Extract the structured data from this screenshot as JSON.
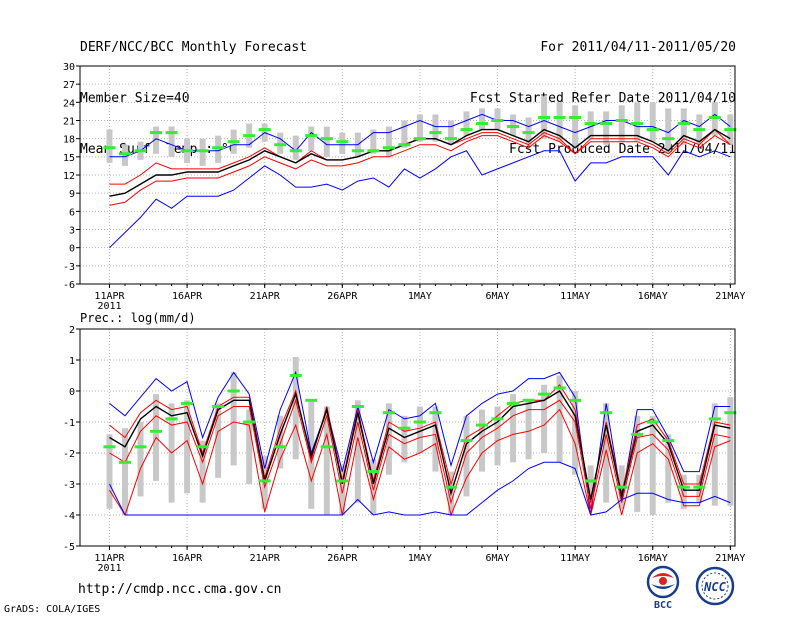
{
  "header": {
    "title": "DERF/NCC/BCC Monthly Forecast",
    "member_size": "Member Size=40",
    "variable": "Mean Surf. Temp.: °C",
    "period": "For 2011/04/11-2011/05/20",
    "fcst_started": "Fcst Started Refer Date 2011/04/10",
    "fcst_produced": "Fcst Produced Date 2011/04/11"
  },
  "footer": {
    "url": "http://cmdp.ncc.cma.gov.cn",
    "grads": "GrADS: COLA/IGES",
    "logo_left": "BCC",
    "logo_right": "NCC"
  },
  "colors": {
    "envelope": "#0000ff",
    "spread": "#ff0000",
    "mean": "#000000",
    "box": "#c8c8c8",
    "marker": "#33ee33",
    "grid": "#b4b4b4"
  },
  "chart_data": [
    {
      "type": "line",
      "title": "Mean Surf. Temp.: °C",
      "xlabel": "",
      "ylabel": "°C",
      "ylim": [
        -6,
        30
      ],
      "yticks": [
        "-6",
        "-3",
        "0",
        "3",
        "6",
        "9",
        "12",
        "15",
        "18",
        "21",
        "24",
        "27",
        "30"
      ],
      "xtick_labels": [
        "11APR",
        "16APR",
        "21APR",
        "26APR",
        "1MAY",
        "6MAY",
        "11MAY",
        "16MAY",
        "21MAY"
      ],
      "year_label": "2011",
      "x_start_day": 1,
      "x_end_day": 41,
      "series": [
        {
          "name": "max",
          "values": [
            15,
            15,
            16,
            18,
            17,
            16,
            16,
            16,
            17,
            17,
            19,
            18,
            16,
            19,
            17,
            17,
            17,
            19,
            19,
            20,
            21,
            20,
            20,
            21,
            22,
            21,
            21,
            20,
            21,
            20,
            19,
            20,
            21,
            21,
            20,
            20,
            19,
            21,
            20,
            22,
            20
          ]
        },
        {
          "name": "upper",
          "values": [
            10.5,
            10.5,
            12,
            14,
            13,
            13,
            13,
            13,
            14,
            15,
            16.5,
            15,
            14,
            16,
            14.5,
            14.5,
            15,
            16,
            16,
            17,
            18,
            18,
            17,
            18,
            19,
            19,
            18,
            17,
            19,
            18,
            15.5,
            18,
            18,
            18,
            18,
            17,
            15.5,
            18,
            17,
            19.5,
            17
          ]
        },
        {
          "name": "mean",
          "values": [
            8.5,
            9,
            10.5,
            12,
            12,
            12.5,
            12.5,
            12.5,
            13.5,
            14.5,
            16,
            15,
            14,
            15.5,
            14.5,
            14.5,
            15,
            16,
            16,
            17,
            18,
            18,
            17,
            18.5,
            19.5,
            19.5,
            18.5,
            17.5,
            19.5,
            18.5,
            16.5,
            18.5,
            18.5,
            18.5,
            18.5,
            17.5,
            16,
            18.5,
            17.5,
            19.5,
            18
          ]
        },
        {
          "name": "lower",
          "values": [
            7,
            7.5,
            9.5,
            11,
            11,
            11.5,
            11.5,
            11.5,
            12.5,
            13.5,
            15,
            14,
            13,
            14.5,
            13.5,
            13.5,
            14,
            15,
            15,
            16,
            17,
            17,
            16,
            17.5,
            18.5,
            18.5,
            17.5,
            16.5,
            18.5,
            17.5,
            15.5,
            17.5,
            17.5,
            17.5,
            17.5,
            16.5,
            15,
            17.5,
            16.5,
            18.5,
            17
          ]
        },
        {
          "name": "min",
          "values": [
            0,
            2.5,
            5,
            8,
            6.5,
            8.5,
            8.5,
            8.5,
            9.5,
            11.5,
            13.5,
            12,
            10,
            10,
            10.5,
            9.5,
            11,
            11.5,
            10,
            13,
            11.5,
            13,
            15,
            16,
            12,
            13,
            14,
            15,
            16,
            16,
            11,
            14,
            14,
            15,
            15,
            15,
            12,
            16,
            15,
            16,
            15
          ]
        },
        {
          "name": "ens_mean_marker",
          "values": [
            16.5,
            15.5,
            16,
            19,
            19,
            16,
            16,
            16.5,
            17.5,
            18.5,
            19.5,
            17,
            16,
            18.5,
            18,
            17.5,
            16,
            16,
            16.5,
            17,
            18,
            19,
            18,
            19.5,
            20.5,
            21,
            20,
            19,
            21.5,
            21.5,
            21.5,
            20.5,
            20.5,
            21,
            20.5,
            19.5,
            18,
            20.5,
            19.5,
            21.5,
            19.5
          ]
        },
        {
          "name": "box_top",
          "values": [
            19.5,
            17,
            17.5,
            20,
            20,
            18,
            18,
            18.5,
            19.5,
            20.5,
            20.5,
            19,
            18.5,
            20,
            20,
            19,
            19,
            19.5,
            20,
            21,
            22,
            22,
            21,
            22.5,
            23,
            23,
            22,
            21.5,
            25,
            24,
            23.5,
            22.5,
            22.5,
            23.5,
            24,
            24,
            23,
            23,
            22,
            24,
            22
          ]
        },
        {
          "name": "box_bottom",
          "values": [
            14,
            13.5,
            14.5,
            15.5,
            15,
            14,
            13.5,
            14,
            15.5,
            16.5,
            17.5,
            15.5,
            14.5,
            16,
            15,
            15.5,
            15,
            15.5,
            15,
            16.5,
            17.5,
            17.5,
            17,
            18.5,
            19.5,
            19.5,
            18.5,
            17,
            18,
            17.5,
            16.5,
            18,
            17,
            17.5,
            17.5,
            17.5,
            15.5,
            17,
            17,
            18.5,
            17
          ]
        }
      ]
    },
    {
      "type": "line",
      "title": "Prec.: log(mm/d)",
      "xlabel": "",
      "ylabel": "log(mm/d)",
      "ylim": [
        -5,
        2
      ],
      "yticks": [
        "-5",
        "-4",
        "-3",
        "-2",
        "-1",
        "0",
        "1",
        "2"
      ],
      "xtick_labels": [
        "11APR",
        "16APR",
        "21APR",
        "26APR",
        "1MAY",
        "6MAY",
        "11MAY",
        "16MAY",
        "21MAY"
      ],
      "year_label": "2011",
      "x_start_day": 1,
      "x_end_day": 41,
      "series": [
        {
          "name": "max",
          "values": [
            -0.4,
            -0.8,
            -0.2,
            0.4,
            0.0,
            0.3,
            -1.5,
            -0.2,
            0.6,
            -0.1,
            -2.5,
            -0.6,
            0.6,
            -2.0,
            -0.6,
            -2.6,
            -0.5,
            -2.3,
            -0.6,
            -0.9,
            -0.8,
            -0.4,
            -2.4,
            -0.8,
            -0.4,
            -0.1,
            0.0,
            0.4,
            0.4,
            0.6,
            -0.2,
            -4.0,
            -0.4,
            -3.5,
            -0.6,
            -0.6,
            -1.5,
            -2.6,
            -2.6,
            -0.5,
            -0.5
          ]
        },
        {
          "name": "upper",
          "values": [
            -1.1,
            -1.5,
            -0.7,
            -0.3,
            -0.6,
            -0.5,
            -2.0,
            -0.5,
            -0.2,
            -0.2,
            -2.8,
            -1.2,
            0.0,
            -2.2,
            -0.5,
            -2.9,
            -0.6,
            -2.9,
            -1.0,
            -1.3,
            -1.2,
            -1.0,
            -3.0,
            -1.5,
            -1.2,
            -0.8,
            -0.4,
            -0.3,
            -0.3,
            0.2,
            -0.6,
            -3.6,
            -1.0,
            -3.3,
            -1.1,
            -0.9,
            -1.6,
            -3.0,
            -3.0,
            -1.0,
            -1.1
          ]
        },
        {
          "name": "mean",
          "values": [
            -1.5,
            -1.8,
            -0.9,
            -0.5,
            -0.8,
            -0.7,
            -2.1,
            -0.6,
            -0.3,
            -0.3,
            -2.9,
            -1.4,
            -0.1,
            -2.1,
            -0.6,
            -3.0,
            -0.7,
            -3.0,
            -1.2,
            -1.5,
            -1.3,
            -1.1,
            -3.3,
            -1.7,
            -1.3,
            -1.0,
            -0.5,
            -0.4,
            -0.3,
            0.0,
            -0.8,
            -3.5,
            -1.1,
            -3.4,
            -1.3,
            -1.1,
            -1.7,
            -3.2,
            -3.2,
            -1.1,
            -1.2
          ]
        },
        {
          "name": "lower",
          "values": [
            -2.0,
            -2.3,
            -1.3,
            -0.8,
            -1.1,
            -1.0,
            -2.3,
            -0.8,
            -0.5,
            -0.5,
            -3.1,
            -1.7,
            -0.3,
            -2.3,
            -0.8,
            -3.3,
            -1.0,
            -3.2,
            -1.4,
            -1.7,
            -1.5,
            -1.4,
            -3.6,
            -2.0,
            -1.5,
            -1.2,
            -0.8,
            -0.6,
            -0.6,
            -0.3,
            -1.0,
            -3.8,
            -1.4,
            -3.6,
            -1.5,
            -1.4,
            -1.9,
            -3.4,
            -3.4,
            -1.4,
            -1.5
          ]
        },
        {
          "name": "red_low",
          "values": [
            -3.2,
            -4.0,
            -2.5,
            -1.5,
            -2.0,
            -1.6,
            -3.0,
            -1.3,
            -1.0,
            -1.1,
            -3.9,
            -2.2,
            -1.1,
            -2.9,
            -1.4,
            -4.0,
            -1.5,
            -3.5,
            -1.8,
            -2.2,
            -2.0,
            -1.7,
            -4.0,
            -2.8,
            -2.0,
            -1.6,
            -1.4,
            -1.3,
            -1.1,
            -0.6,
            -1.7,
            -4.0,
            -1.9,
            -4.0,
            -2.0,
            -1.7,
            -2.2,
            -3.7,
            -3.7,
            -1.8,
            -1.6
          ]
        },
        {
          "name": "min",
          "values": [
            -3.0,
            -4.0,
            -4.0,
            -4.0,
            -4.0,
            -4.0,
            -4.0,
            -4.0,
            -4.0,
            -4.0,
            -4.0,
            -4.0,
            -4.0,
            -4.0,
            -4.0,
            -4.0,
            -3.5,
            -4.0,
            -3.9,
            -4.0,
            -4.0,
            -3.9,
            -4.0,
            -4.0,
            -3.6,
            -3.2,
            -2.9,
            -2.5,
            -2.3,
            -2.3,
            -2.5,
            -4.0,
            -3.9,
            -3.5,
            -3.3,
            -3.3,
            -3.5,
            -3.6,
            -3.6,
            -3.4,
            -3.6
          ]
        },
        {
          "name": "ens_mean_marker",
          "values": [
            -1.8,
            -2.3,
            -1.8,
            -1.3,
            -0.9,
            -0.4,
            -1.8,
            -0.5,
            0.0,
            -1.0,
            -2.9,
            -1.8,
            0.5,
            -0.3,
            -1.8,
            -2.9,
            -0.5,
            -2.6,
            -0.7,
            -1.2,
            -1.0,
            -0.7,
            -3.1,
            -1.6,
            -1.1,
            -0.9,
            -0.4,
            -0.3,
            -0.1,
            0.1,
            -0.3,
            -2.9,
            -0.7,
            -3.1,
            -1.4,
            -1.0,
            -1.6,
            -3.1,
            -3.1,
            -0.9,
            -0.7
          ]
        },
        {
          "name": "box_top",
          "values": [
            -1.4,
            -1.2,
            -1.0,
            -0.1,
            -0.4,
            -0.3,
            -1.6,
            -0.4,
            0.6,
            -0.6,
            -2.1,
            -0.8,
            1.1,
            -0.3,
            -0.5,
            -2.4,
            -0.3,
            -2.2,
            -0.4,
            -0.8,
            -0.5,
            -0.5,
            -2.6,
            -0.8,
            -0.6,
            -0.5,
            -0.1,
            -0.3,
            0.2,
            0.5,
            0.0,
            -2.4,
            -0.4,
            -2.4,
            -0.8,
            -0.8,
            -1.4,
            -2.7,
            -2.7,
            -0.4,
            -0.2
          ]
        },
        {
          "name": "box_bottom",
          "values": [
            -3.8,
            -4.0,
            -3.4,
            -2.9,
            -3.6,
            -3.3,
            -3.6,
            -2.8,
            -2.4,
            -3.0,
            -3.8,
            -2.5,
            -2.2,
            -3.8,
            -4.0,
            -4.0,
            -3.6,
            -4.0,
            -2.7,
            -2.3,
            -2.0,
            -2.6,
            -4.0,
            -3.4,
            -2.6,
            -2.4,
            -2.3,
            -2.2,
            -2.0,
            -2.3,
            -2.7,
            -3.8,
            -3.6,
            -3.8,
            -3.9,
            -4.0,
            -3.6,
            -3.8,
            -3.6,
            -3.7,
            -3.7
          ]
        }
      ]
    }
  ]
}
